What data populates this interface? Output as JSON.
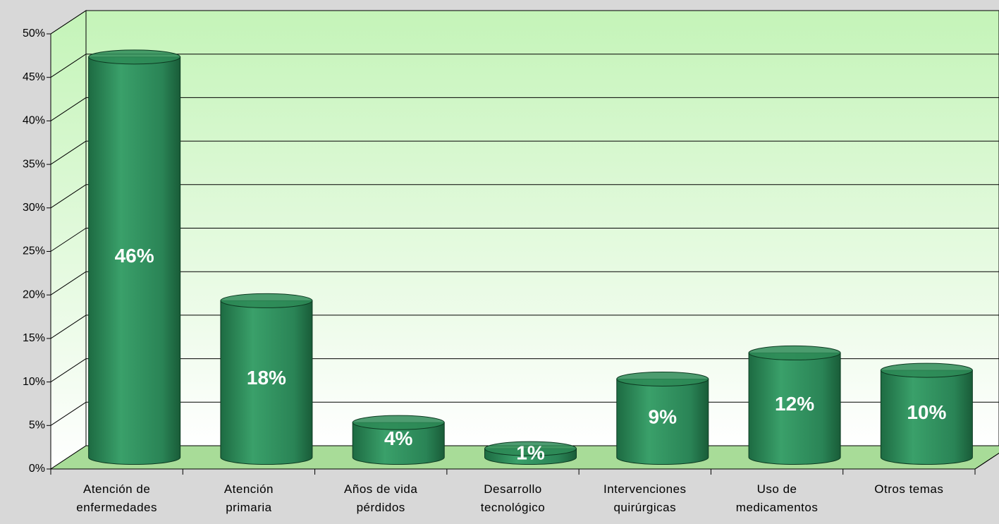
{
  "chart_data": {
    "type": "bar3d",
    "categories": [
      "Atención de enfermedades",
      "Atención primaria",
      "Años de vida pérdidos",
      "Desarrollo tecnológico",
      "Intervenciones quirúrgicas",
      "Uso de medicamentos",
      "Otros temas"
    ],
    "values": [
      46,
      18,
      4,
      1,
      9,
      12,
      10
    ],
    "value_labels": [
      "46%",
      "18%",
      "4%",
      "1%",
      "9%",
      "12%",
      "10%"
    ],
    "color": "#2e8b57",
    "ylim": [
      0,
      50
    ],
    "yticks": [
      {
        "value": 0,
        "label": "0%"
      },
      {
        "value": 5,
        "label": "5%"
      },
      {
        "value": 10,
        "label": "10%"
      },
      {
        "value": 15,
        "label": "15%"
      },
      {
        "value": 20,
        "label": "20%"
      },
      {
        "value": 25,
        "label": "25%"
      },
      {
        "value": 30,
        "label": "30%"
      },
      {
        "value": 35,
        "label": "35%"
      },
      {
        "value": 40,
        "label": "40%"
      },
      {
        "value": 45,
        "label": "45%"
      },
      {
        "value": 50,
        "label": "50%"
      }
    ],
    "grid": true
  }
}
